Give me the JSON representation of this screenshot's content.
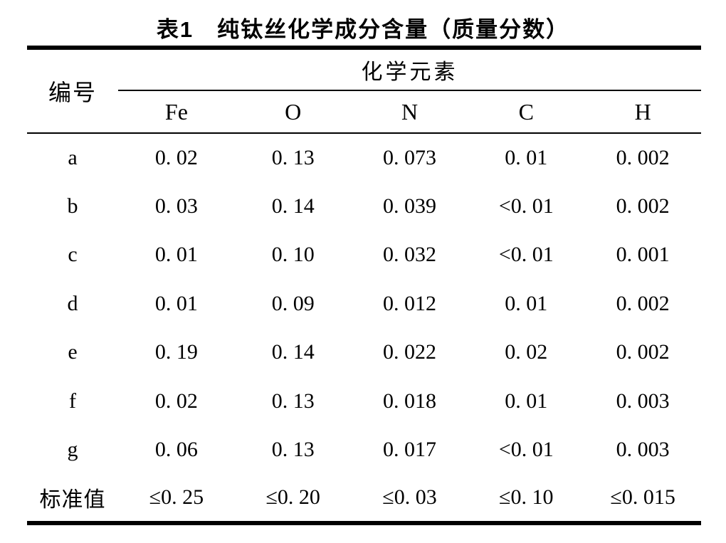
{
  "title": "表1　纯钛丝化学成分含量（质量分数）",
  "table": {
    "header": {
      "id_col": "编号",
      "group": "化学元素",
      "elements": [
        "Fe",
        "O",
        "N",
        "C",
        "H"
      ]
    },
    "rows": [
      {
        "label": "a",
        "values": [
          "0. 02",
          "0. 13",
          "0. 073",
          "0. 01",
          "0. 002"
        ]
      },
      {
        "label": "b",
        "values": [
          "0. 03",
          "0. 14",
          "0. 039",
          "<0. 01",
          "0. 002"
        ]
      },
      {
        "label": "c",
        "values": [
          "0. 01",
          "0. 10",
          "0. 032",
          "<0. 01",
          "0. 001"
        ]
      },
      {
        "label": "d",
        "values": [
          "0. 01",
          "0. 09",
          "0. 012",
          "0. 01",
          "0. 002"
        ]
      },
      {
        "label": "e",
        "values": [
          "0. 19",
          "0. 14",
          "0. 022",
          "0. 02",
          "0. 002"
        ]
      },
      {
        "label": "f",
        "values": [
          "0. 02",
          "0. 13",
          "0. 018",
          "0. 01",
          "0. 003"
        ]
      },
      {
        "label": "g",
        "values": [
          "0. 06",
          "0. 13",
          "0. 017",
          "<0. 01",
          "0. 003"
        ]
      },
      {
        "label": "标准值",
        "values": [
          "≤0. 25",
          "≤0. 20",
          "≤0. 03",
          "≤0. 10",
          "≤0. 015"
        ]
      }
    ]
  }
}
